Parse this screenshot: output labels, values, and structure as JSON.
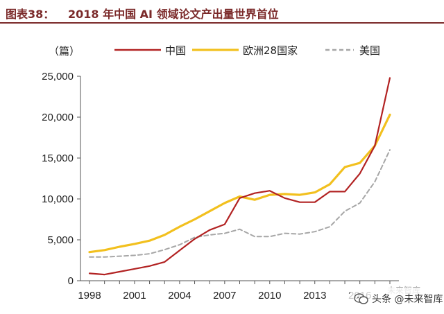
{
  "figure": {
    "label": "图表38：",
    "title": "2018 年中国 AI 领域论文产出量世界首位"
  },
  "chart_data": {
    "type": "line",
    "title": "2018 年中国 AI 领域论文产出量世界首位",
    "unit": "（篇）",
    "xlabel": "",
    "ylabel": "（篇）",
    "xlim": [
      1998,
      2018
    ],
    "ylim": [
      0,
      25000
    ],
    "x_ticks": [
      "1998",
      "2001",
      "2004",
      "2007",
      "2010",
      "2013",
      "2016"
    ],
    "y_ticks": [
      "0",
      "5,000",
      "10,000",
      "15,000",
      "20,000",
      "25,000"
    ],
    "x": [
      1998,
      1999,
      2000,
      2001,
      2002,
      2003,
      2004,
      2005,
      2006,
      2007,
      2008,
      2009,
      2010,
      2011,
      2012,
      2013,
      2014,
      2015,
      2016,
      2017,
      2018
    ],
    "series": [
      {
        "name": "中国",
        "color": "#b22222",
        "style": "solid",
        "values": [
          900,
          750,
          1100,
          1450,
          1800,
          2300,
          3700,
          5100,
          6200,
          6900,
          10100,
          10700,
          11000,
          10100,
          9600,
          9600,
          10900,
          10900,
          13100,
          16500,
          24800
        ]
      },
      {
        "name": "欧洲28国家",
        "color": "#f2c01e",
        "style": "solid",
        "values": [
          3500,
          3750,
          4150,
          4500,
          4900,
          5600,
          6600,
          7500,
          8500,
          9500,
          10300,
          9900,
          10500,
          10600,
          10500,
          10800,
          11800,
          13900,
          14400,
          16500,
          20300
        ]
      },
      {
        "name": "美国",
        "color": "#a6a6a6",
        "style": "dashed",
        "values": [
          2900,
          2900,
          3000,
          3100,
          3300,
          3800,
          4400,
          5300,
          5600,
          5800,
          6300,
          5400,
          5400,
          5800,
          5700,
          6000,
          6600,
          8500,
          9500,
          12100,
          16000
        ]
      }
    ],
    "legend": "top"
  },
  "watermark": {
    "text": "头条 @未来智库",
    "back_text": "未来智库"
  },
  "icons": {
    "watermark": "wechat-icon"
  }
}
